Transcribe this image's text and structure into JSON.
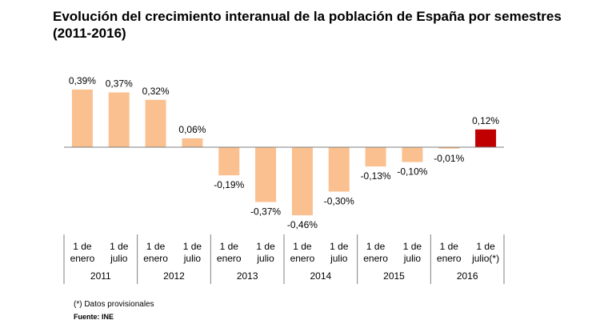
{
  "chart_data": {
    "type": "bar",
    "title": "Evolución del crecimiento interanual de la población de España por semestres (2011-2016)",
    "categories": [
      "1 de enero",
      "1 de julio",
      "1 de enero",
      "1 de julio",
      "1 de enero",
      "1 de julio",
      "1 de enero",
      "1 de julio",
      "1 de enero",
      "1 de julio",
      "1 de enero",
      "1 de julio(*)"
    ],
    "years": [
      "2011",
      "2012",
      "2013",
      "2014",
      "2015",
      "2016"
    ],
    "values": [
      0.39,
      0.37,
      0.32,
      0.06,
      -0.19,
      -0.37,
      -0.46,
      -0.3,
      -0.13,
      -0.1,
      -0.01,
      0.12
    ],
    "labels": [
      "0,39%",
      "0,37%",
      "0,32%",
      "0,06%",
      "-0,19%",
      "-0,37%",
      "-0,46%",
      "-0,30%",
      "-0,13%",
      "-0,10%",
      "-0,01%",
      "0,12%"
    ],
    "ylim": [
      -0.5,
      0.5
    ],
    "grid": false,
    "legend": "none",
    "colors": {
      "bar": "#FAC090",
      "highlight": "#C00000",
      "axis": "#7f7f7f"
    },
    "highlight_index": 11
  },
  "footnote": "(*) Datos provisionales",
  "source": "Fuente: INE"
}
